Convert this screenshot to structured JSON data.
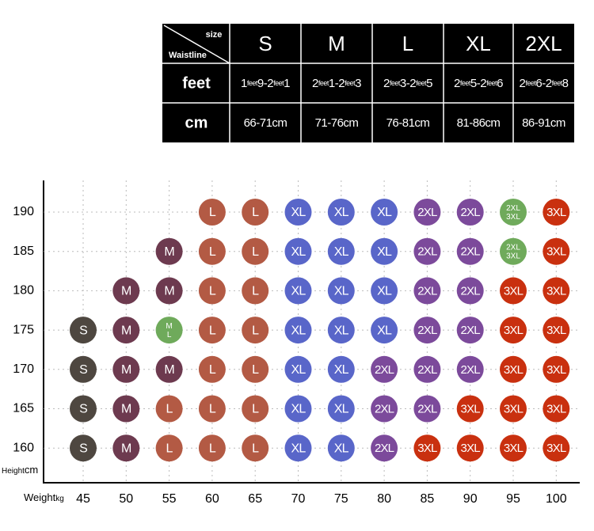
{
  "table": {
    "corner": {
      "top": "size",
      "bottom": "Waistline"
    },
    "sizes": [
      "S",
      "M",
      "L",
      "XL",
      "2XL"
    ],
    "rows": [
      {
        "label": "feet",
        "cells": [
          [
            "1",
            "feet",
            "9-2",
            "feet",
            "1"
          ],
          [
            "2",
            "feet",
            "1-2",
            "feet",
            "3"
          ],
          [
            "2",
            "feet",
            "3-2",
            "feet",
            "5"
          ],
          [
            "2",
            "feet",
            "5-2",
            "feet",
            "6"
          ],
          [
            "2",
            "feet",
            "6-2",
            "feet",
            "8"
          ]
        ]
      },
      {
        "label": "cm",
        "cells": [
          [
            "66-71cm"
          ],
          [
            "71-76cm"
          ],
          [
            "76-81cm"
          ],
          [
            "81-86cm"
          ],
          [
            "86-91cm"
          ]
        ]
      }
    ]
  },
  "grid": {
    "y_label": {
      "name": "Height",
      "unit": "cm"
    },
    "x_label": {
      "name": "Weight",
      "unit": "kg"
    },
    "heights": [
      190,
      185,
      180,
      175,
      170,
      165,
      160
    ],
    "weights": [
      45,
      50,
      55,
      60,
      65,
      70,
      75,
      80,
      85,
      90,
      95,
      100
    ],
    "colors": {
      "S": "#4e4740",
      "M": "#6d3a4f",
      "L": "#b35a44",
      "XL": "#5966c9",
      "2XL": "#7c4a9b",
      "3XL": "#c9300f",
      "M/L": "#6faa5b",
      "2XL/3XL": "#6faa5b"
    },
    "cells": [
      [
        null,
        null,
        null,
        "L",
        "L",
        "XL",
        "XL",
        "XL",
        "2XL",
        "2XL",
        "2XL/3XL",
        "3XL"
      ],
      [
        null,
        null,
        "M",
        "L",
        "L",
        "XL",
        "XL",
        "XL",
        "2XL",
        "2XL",
        "2XL/3XL",
        "3XL"
      ],
      [
        null,
        "M",
        "M",
        "L",
        "L",
        "XL",
        "XL",
        "XL",
        "2XL",
        "2XL",
        "3XL",
        "3XL"
      ],
      [
        "S",
        "M",
        "M/L",
        "L",
        "L",
        "XL",
        "XL",
        "XL",
        "2XL",
        "2XL",
        "3XL",
        "3XL"
      ],
      [
        "S",
        "M",
        "M",
        "L",
        "L",
        "XL",
        "XL",
        "2XL",
        "2XL",
        "2XL",
        "3XL",
        "3XL"
      ],
      [
        "S",
        "M",
        "L",
        "L",
        "L",
        "XL",
        "XL",
        "2XL",
        "2XL",
        "3XL",
        "3XL",
        "3XL"
      ],
      [
        "S",
        "M",
        "L",
        "L",
        "L",
        "XL",
        "XL",
        "2XL",
        "3XL",
        "3XL",
        "3XL",
        "3XL"
      ]
    ]
  }
}
